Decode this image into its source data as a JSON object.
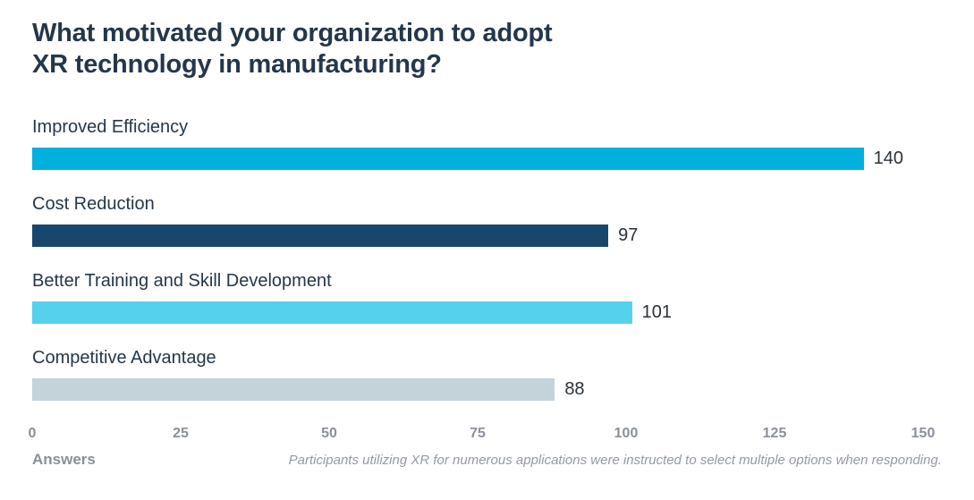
{
  "chart_data": {
    "type": "bar",
    "orientation": "horizontal",
    "title": "What motivated your organization to adopt XR technology in manufacturing?",
    "title_lines": [
      "What motivated your organization to adopt",
      "XR technology in manufacturing?"
    ],
    "categories": [
      "Improved Efficiency",
      "Cost Reduction",
      "Better Training and Skill Development",
      "Competitive Advantage"
    ],
    "values": [
      140,
      97,
      101,
      88
    ],
    "data_labels": [
      "140",
      "97",
      "101",
      "88"
    ],
    "bar_colors": [
      "#00b1dd",
      "#17476c",
      "#55d1ed",
      "#c4d2da"
    ],
    "xlim": [
      0,
      150
    ],
    "x_ticks": [
      "0",
      "25",
      "50",
      "75",
      "100",
      "125",
      "150"
    ],
    "xlabel": "Answers",
    "footnote": "Participants utilizing XR for numerous applications were instructed to select multiple options when responding.",
    "grid": false,
    "legend": "none",
    "background": "#ffffff",
    "title_color": "#24374a",
    "label_color": "#24374a",
    "tick_color": "#8a909a"
  }
}
